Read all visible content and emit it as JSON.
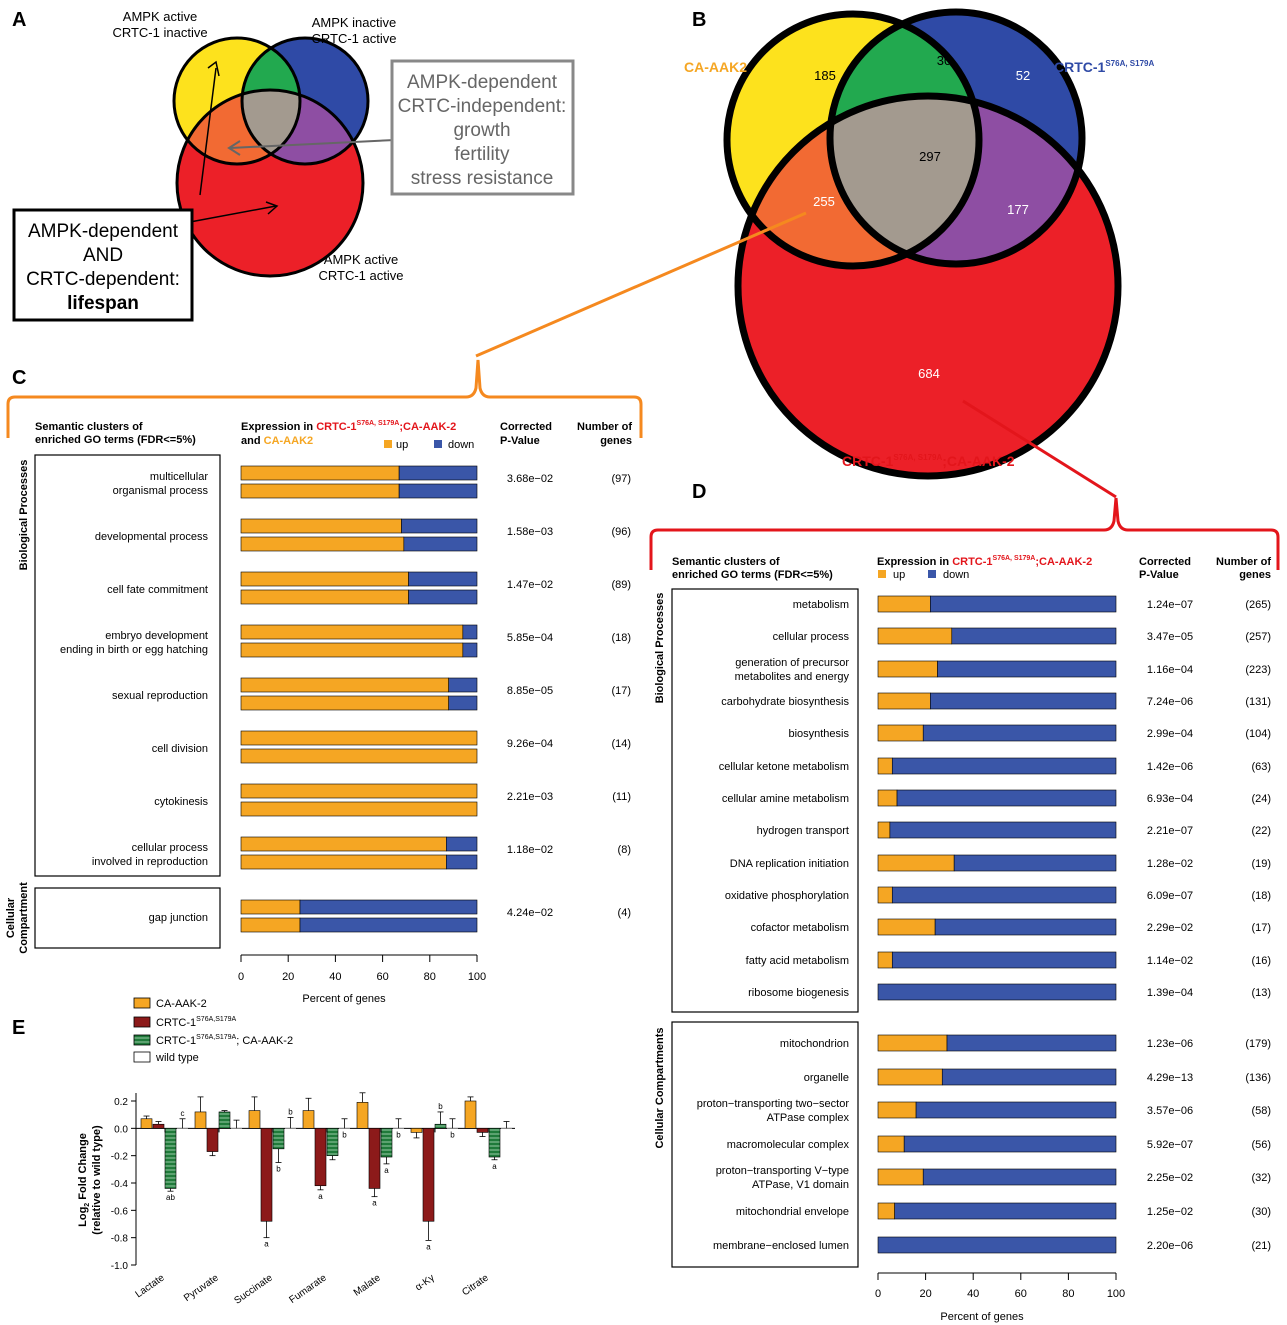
{
  "panels": {
    "A": "A",
    "B": "B",
    "C": "C",
    "D": "D",
    "E": "E"
  },
  "panel_a": {
    "label_top_left": [
      "AMPK active",
      "CRTC-1 inactive"
    ],
    "label_top_right": [
      "AMPK inactive",
      "CRTC-1 active"
    ],
    "label_bottom": [
      "AMPK active",
      "CRTC-1 active"
    ],
    "gray_box": [
      "AMPK-dependent",
      "CRTC-independent:",
      "growth",
      "fertility",
      "stress resistance"
    ],
    "black_box": [
      "AMPK-dependent",
      "AND",
      "CRTC-dependent:",
      "lifespan"
    ],
    "colors": {
      "yellow": "#fde21d",
      "blue": "#2f4aa6",
      "red": "#ec2028",
      "green": "#22a94f",
      "orange": "#f26a33",
      "purple": "#8e4ea3",
      "gray": "#a39a8f"
    }
  },
  "panel_b": {
    "label_aak2": "CA-AAK2",
    "label_crtc": "CRTC-1",
    "label_crtc_sup": "S76A, S179A",
    "label_double": "CRTC-1",
    "label_double_sup": "S76A, S179A",
    "label_double_tail": ";CA-AAK-2",
    "counts": {
      "aak2_only": "185",
      "aak2_crtc": "30",
      "crtc_only": "52",
      "all_three": "297",
      "aak2_double": "255",
      "crtc_double": "177",
      "double_only": "684"
    }
  },
  "panel_c": {
    "header_cluster": [
      "Semantic clusters of",
      "enriched GO terms (FDR<=5%)"
    ],
    "header_expr_1": "Expression in ",
    "header_expr_red": "CRTC-1",
    "header_expr_sup": "S76A, S179A",
    "header_expr_red2": ";CA-AAK-2",
    "header_expr_2": "and ",
    "header_expr_orange": "CA-AAK2",
    "legend_up": "up",
    "legend_down": "down",
    "header_p": [
      "Corrected",
      "P-Value"
    ],
    "header_n": [
      "Number of",
      "genes"
    ],
    "group_bp": "Biological Processes",
    "group_cc": [
      "Cellular",
      "Compartment"
    ],
    "xlabel": "Percent of genes",
    "ticks": [
      "0",
      "20",
      "40",
      "60",
      "80",
      "100"
    ]
  },
  "panel_d": {
    "header_cluster": [
      "Semantic clusters of",
      "enriched GO terms (FDR<=5%)"
    ],
    "header_expr_1": "Expression in ",
    "header_expr_red": "CRTC-1",
    "header_expr_sup": "S76A, S179A",
    "header_expr_red2": ";CA-AAK-2",
    "legend_up": "up",
    "legend_down": "down",
    "header_p": [
      "Corrected",
      "P-Value"
    ],
    "header_n": [
      "Number of",
      "genes"
    ],
    "group_bp": "Biological Processes",
    "group_cc": "Cellular Compartments",
    "xlabel": "Percent of genes",
    "ticks": [
      "0",
      "20",
      "40",
      "60",
      "80",
      "100"
    ]
  },
  "panel_e": {
    "legend": [
      {
        "label": "CA-AAK-2"
      },
      {
        "label": "CRTC-1",
        "sup": "S76A,S179A"
      },
      {
        "label": "CRTC-1",
        "sup": "S76A,S179A",
        "tail": "; CA-AAK-2"
      },
      {
        "label": "wild type"
      }
    ],
    "ylabel_1": "Log",
    "ylabel_sub": "2",
    "ylabel_2": " Fold Change",
    "ylabel_3": "(relative to wild type)",
    "yticks": [
      "0.2",
      "0.0",
      "-0.2",
      "-0.4",
      "-0.6",
      "-0.8",
      "-1.0"
    ]
  },
  "chart_data": [
    {
      "type": "bar",
      "panel": "C",
      "orientation": "horizontal-stacked",
      "xlabel": "Percent of genes",
      "xlim": [
        0,
        100
      ],
      "stack_labels": [
        "up",
        "down"
      ],
      "colors": {
        "up": "#f5a623",
        "down": "#3a56a8"
      },
      "rows": [
        {
          "term": [
            "multicellular",
            "organismal process"
          ],
          "pval": "3.68e−02",
          "n": "(97)",
          "up": [
            67,
            67
          ],
          "group": "bp"
        },
        {
          "term": [
            "developmental process"
          ],
          "pval": "1.58e−03",
          "n": "(96)",
          "up": [
            68,
            69
          ],
          "group": "bp"
        },
        {
          "term": [
            "cell fate commitment"
          ],
          "pval": "1.47e−02",
          "n": "(89)",
          "up": [
            71,
            71
          ],
          "group": "bp"
        },
        {
          "term": [
            "embryo development",
            "ending in birth or egg hatching"
          ],
          "pval": "5.85e−04",
          "n": "(18)",
          "up": [
            94,
            94
          ],
          "group": "bp"
        },
        {
          "term": [
            "sexual reproduction"
          ],
          "pval": "8.85e−05",
          "n": "(17)",
          "up": [
            88,
            88
          ],
          "group": "bp"
        },
        {
          "term": [
            "cell division"
          ],
          "pval": "9.26e−04",
          "n": "(14)",
          "up": [
            100,
            100
          ],
          "group": "bp"
        },
        {
          "term": [
            "cytokinesis"
          ],
          "pval": "2.21e−03",
          "n": "(11)",
          "up": [
            100,
            100
          ],
          "group": "bp"
        },
        {
          "term": [
            "cellular process",
            "involved in reproduction"
          ],
          "pval": "1.18e−02",
          "n": "(8)",
          "up": [
            87,
            87
          ],
          "group": "bp"
        },
        {
          "term": [
            "gap junction"
          ],
          "pval": "4.24e−02",
          "n": "(4)",
          "up": [
            25,
            25
          ],
          "group": "cc"
        }
      ]
    },
    {
      "type": "bar",
      "panel": "D",
      "orientation": "horizontal-stacked",
      "xlabel": "Percent of genes",
      "xlim": [
        0,
        100
      ],
      "stack_labels": [
        "up",
        "down"
      ],
      "colors": {
        "up": "#f5a623",
        "down": "#3a56a8"
      },
      "rows": [
        {
          "term": [
            "metabolism"
          ],
          "pval": "1.24e−07",
          "n": "(265)",
          "up": 22,
          "group": "bp"
        },
        {
          "term": [
            "cellular process"
          ],
          "pval": "3.47e−05",
          "n": "(257)",
          "up": 31,
          "group": "bp"
        },
        {
          "term": [
            "generation of precursor",
            "metabolites and energy"
          ],
          "pval": "1.16e−04",
          "n": "(223)",
          "up": 25,
          "group": "bp"
        },
        {
          "term": [
            "carbohydrate biosynthesis"
          ],
          "pval": "7.24e−06",
          "n": "(131)",
          "up": 22,
          "group": "bp"
        },
        {
          "term": [
            "biosynthesis"
          ],
          "pval": "2.99e−04",
          "n": "(104)",
          "up": 19,
          "group": "bp"
        },
        {
          "term": [
            "cellular ketone metabolism"
          ],
          "pval": "1.42e−06",
          "n": "(63)",
          "up": 6,
          "group": "bp"
        },
        {
          "term": [
            "cellular amine metabolism"
          ],
          "pval": "6.93e−04",
          "n": "(24)",
          "up": 8,
          "group": "bp"
        },
        {
          "term": [
            "hydrogen transport"
          ],
          "pval": "2.21e−07",
          "n": "(22)",
          "up": 5,
          "group": "bp"
        },
        {
          "term": [
            "DNA replication initiation"
          ],
          "pval": "1.28e−02",
          "n": "(19)",
          "up": 32,
          "group": "bp"
        },
        {
          "term": [
            "oxidative phosphorylation"
          ],
          "pval": "6.09e−07",
          "n": "(18)",
          "up": 6,
          "group": "bp"
        },
        {
          "term": [
            "cofactor metabolism"
          ],
          "pval": "2.29e−02",
          "n": "(17)",
          "up": 24,
          "group": "bp"
        },
        {
          "term": [
            "fatty acid metabolism"
          ],
          "pval": "1.14e−02",
          "n": "(16)",
          "up": 6,
          "group": "bp"
        },
        {
          "term": [
            "ribosome biogenesis"
          ],
          "pval": "1.39e−04",
          "n": "(13)",
          "up": 0,
          "group": "bp"
        },
        {
          "term": [
            "mitochondrion"
          ],
          "pval": "1.23e−06",
          "n": "(179)",
          "up": 29,
          "group": "cc"
        },
        {
          "term": [
            "organelle"
          ],
          "pval": "4.29e−13",
          "n": "(136)",
          "up": 27,
          "group": "cc"
        },
        {
          "term": [
            "proton−transporting two−sector",
            "ATPase complex"
          ],
          "pval": "3.57e−06",
          "n": "(58)",
          "up": 16,
          "group": "cc"
        },
        {
          "term": [
            "macromolecular complex"
          ],
          "pval": "5.92e−07",
          "n": "(56)",
          "up": 11,
          "group": "cc"
        },
        {
          "term": [
            "proton−transporting V−type",
            "ATPase, V1 domain"
          ],
          "pval": "2.25e−02",
          "n": "(32)",
          "up": 19,
          "group": "cc"
        },
        {
          "term": [
            "mitochondrial envelope"
          ],
          "pval": "1.25e−02",
          "n": "(30)",
          "up": 7,
          "group": "cc"
        },
        {
          "term": [
            "membrane−enclosed lumen"
          ],
          "pval": "2.20e−06",
          "n": "(21)",
          "up": 0,
          "group": "cc"
        }
      ]
    },
    {
      "type": "bar",
      "panel": "E",
      "ylim": [
        -1.0,
        0.2
      ],
      "categories": [
        "Lactate",
        "Pyruvate",
        "Succinate",
        "Fumarate",
        "Malate",
        "α-Kγ",
        "Citrate"
      ],
      "series": [
        {
          "name": "CA-AAK-2",
          "color": "#f5a623",
          "values": [
            0.07,
            0.12,
            0.13,
            0.13,
            0.19,
            -0.03,
            0.2
          ],
          "err": [
            0.02,
            0.11,
            0.1,
            0.09,
            0.07,
            0.04,
            0.03
          ]
        },
        {
          "name": "CRTC-1 S76A,S179A",
          "color": "#8c1a1a",
          "values": [
            0.03,
            -0.17,
            -0.68,
            -0.42,
            -0.44,
            -0.68,
            -0.03
          ],
          "err": [
            0.02,
            0.03,
            0.12,
            0.03,
            0.06,
            0.14,
            0.03
          ]
        },
        {
          "name": "CRTC-1 S76A,S179A; CA-AAK-2",
          "color": "#1f7a3a",
          "values": [
            -0.44,
            0.12,
            -0.15,
            -0.2,
            -0.21,
            0.03,
            -0.21
          ],
          "err": [
            0.02,
            0.01,
            0.1,
            0.03,
            0.05,
            0.09,
            0.02
          ]
        },
        {
          "name": "wild type",
          "color": "#ffffff",
          "values": [
            0,
            0,
            0,
            0,
            0,
            0,
            0
          ],
          "err": [
            0.07,
            0.06,
            0.08,
            0.07,
            0.07,
            0.07,
            0.05
          ]
        }
      ],
      "annotations": [
        {
          "cat": "Lactate",
          "series": 2,
          "text": "ab",
          "pos": "below"
        },
        {
          "cat": "Lactate",
          "series": 3,
          "text": "c",
          "pos": "above"
        },
        {
          "cat": "Succinate",
          "series": 1,
          "text": "a",
          "pos": "below"
        },
        {
          "cat": "Succinate",
          "series": 2,
          "text": "b",
          "pos": "below"
        },
        {
          "cat": "Succinate",
          "series": 3,
          "text": "b",
          "pos": "above"
        },
        {
          "cat": "Fumarate",
          "series": 1,
          "text": "a",
          "pos": "below"
        },
        {
          "cat": "Fumarate",
          "series": 3,
          "text": "b",
          "pos": "below"
        },
        {
          "cat": "Malate",
          "series": 1,
          "text": "a",
          "pos": "below"
        },
        {
          "cat": "Malate",
          "series": 2,
          "text": "a",
          "pos": "below"
        },
        {
          "cat": "Malate",
          "series": 3,
          "text": "b",
          "pos": "below"
        },
        {
          "cat": "α-Kγ",
          "series": 1,
          "text": "a",
          "pos": "below"
        },
        {
          "cat": "α-Kγ",
          "series": 2,
          "text": "b",
          "pos": "above"
        },
        {
          "cat": "α-Kγ",
          "series": 3,
          "text": "b",
          "pos": "below"
        },
        {
          "cat": "Citrate",
          "series": 2,
          "text": "a",
          "pos": "below"
        }
      ]
    }
  ]
}
